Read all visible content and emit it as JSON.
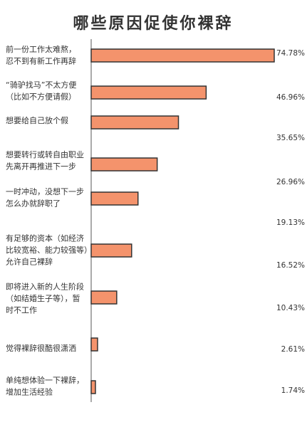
{
  "chart_data": {
    "type": "bar",
    "orientation": "horizontal",
    "title": "哪些原因促使你裸辞",
    "categories": [
      [
        "前一份工作太难熬，",
        "忍不到有新工作再辞"
      ],
      [
        "“骑驴找马”不太方便",
        "（比如不方便请假）"
      ],
      [
        "想要给自己放个假"
      ],
      [
        "想要转行或转自由职业",
        "先离开再推进下一步"
      ],
      [
        "一时冲动，没想下一步",
        "怎么办就辞职了"
      ],
      [
        "有足够的资本（如经济",
        "比较宽裕、能力较强等）",
        "允许自己裸辞"
      ],
      [
        "即将进入新的人生阶段",
        "（如结婚生子等），暂",
        "时不工作"
      ],
      [
        "觉得裸辞很酷很潇洒"
      ],
      [
        "单纯想体验一下裸辞，",
        "增加生活经验"
      ]
    ],
    "values": [
      74.78,
      46.96,
      35.65,
      26.96,
      19.13,
      16.52,
      10.43,
      2.61,
      1.74
    ],
    "value_labels": [
      "74.78%",
      "46.96%",
      "35.65%",
      "26.96%",
      "19.13%",
      "16.52%",
      "10.43%",
      "2.61%",
      "1.74%"
    ],
    "color": "#f4936c",
    "edgecolor": "#333333"
  }
}
